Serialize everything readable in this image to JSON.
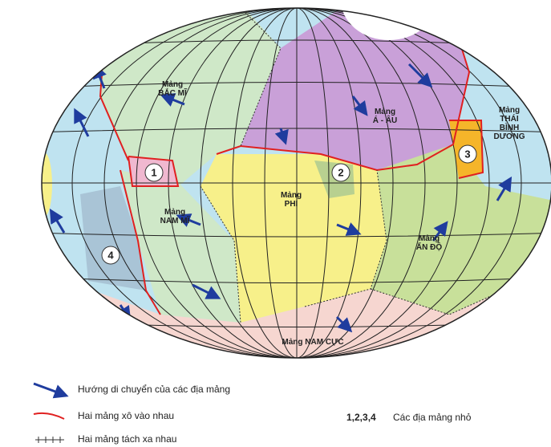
{
  "map": {
    "plates": [
      {
        "lines": [
          "Mảng",
          "BẮC MĨ"
        ]
      },
      {
        "lines": [
          "Mảng",
          "Á - ÂU"
        ]
      },
      {
        "lines": [
          "Mảng",
          "THÁI",
          "BÌNH",
          "DƯƠNG"
        ]
      },
      {
        "lines": [
          "Mảng",
          "PHI"
        ]
      },
      {
        "lines": [
          "Mảng",
          "NAM MĨ"
        ]
      },
      {
        "lines": [
          "Mảng",
          "ẤN ĐỘ"
        ]
      },
      {
        "lines": [
          "Mảng NAM CỰC"
        ]
      }
    ],
    "small_plates": [
      "1",
      "2",
      "3",
      "4"
    ]
  },
  "legend": {
    "items": [
      "Hướng di chuyển của các địa mảng",
      "Hai mảng xô vào nhau",
      "Hai mảng tách xa nhau"
    ],
    "small_key": "1,2,3,4",
    "small_text": "Các địa mảng nhỏ"
  }
}
